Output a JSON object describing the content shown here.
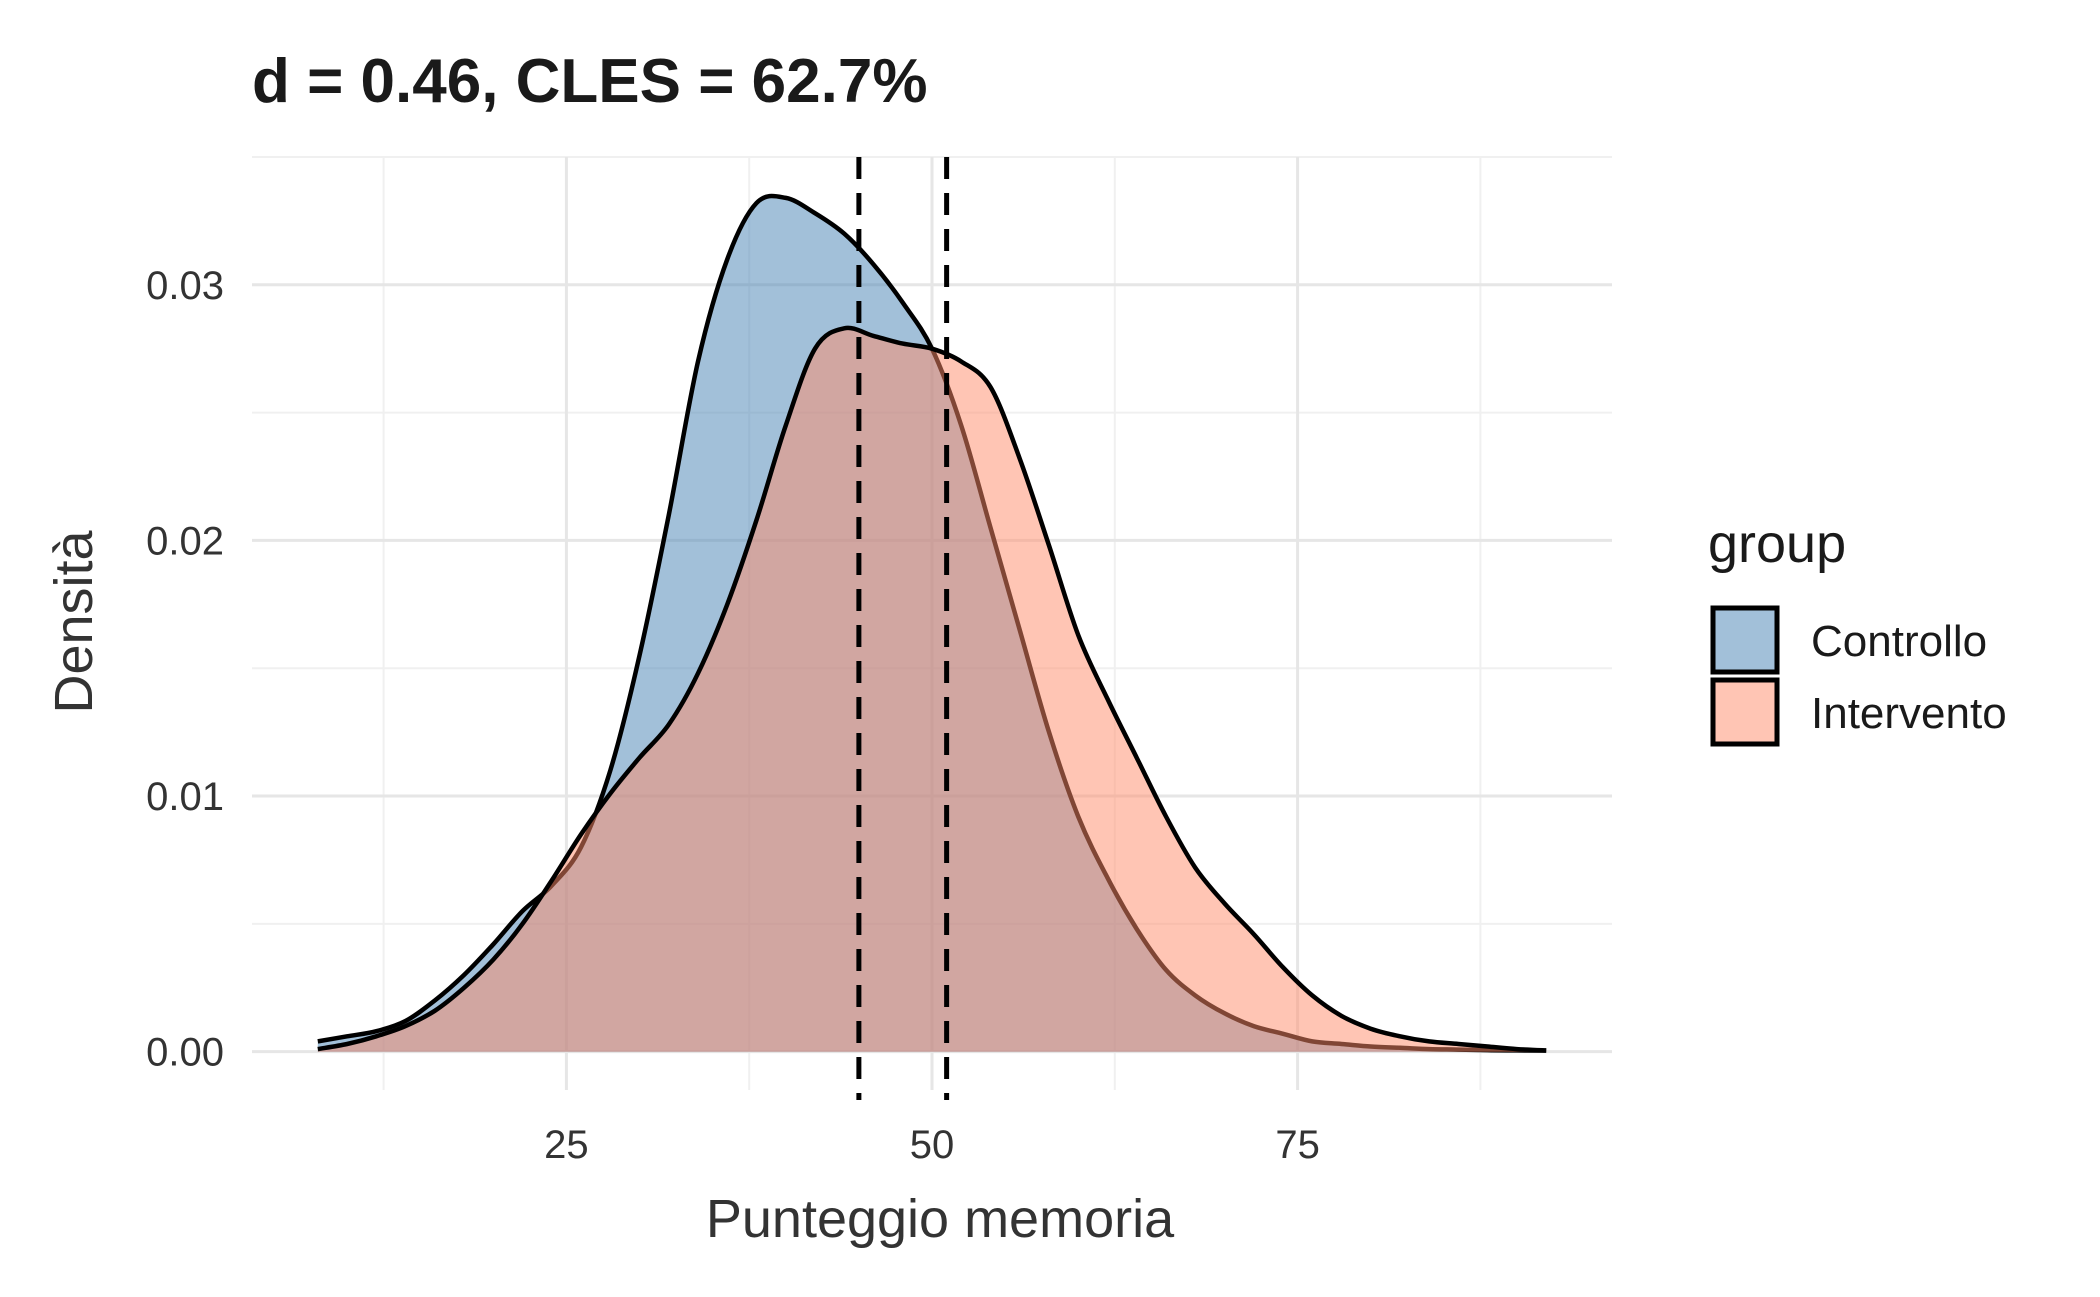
{
  "chart_data": {
    "type": "area",
    "title": "d = 0.46, CLES = 62.7%",
    "xlabel": "Punteggio memoria",
    "ylabel": "Densità",
    "xlim": [
      3.5,
      96.5
    ],
    "ylim": [
      -0.0015,
      0.035
    ],
    "x_ticks": [
      25,
      50,
      75
    ],
    "x_tick_labels": [
      "25",
      "50",
      "75"
    ],
    "y_ticks": [
      0.0,
      0.01,
      0.02,
      0.03
    ],
    "y_tick_labels": [
      "0.00",
      "0.01",
      "0.02",
      "0.03"
    ],
    "grid": true,
    "legend": {
      "title": "group",
      "position": "right"
    },
    "series": [
      {
        "name": "Controllo",
        "color": "#4682B4",
        "mean": 45.0,
        "x": [
          8,
          10,
          12,
          14,
          16,
          18,
          20,
          22,
          24,
          26,
          28,
          30,
          32,
          34,
          36,
          38,
          40,
          42,
          44,
          46,
          48,
          50,
          52,
          54,
          56,
          58,
          60,
          62,
          64,
          66,
          68,
          70,
          72,
          74,
          76,
          78,
          80,
          82,
          84,
          86,
          88,
          90,
          92
        ],
        "y": [
          0.0004,
          0.0006,
          0.0008,
          0.0012,
          0.002,
          0.003,
          0.0042,
          0.0055,
          0.0065,
          0.008,
          0.011,
          0.0155,
          0.021,
          0.027,
          0.031,
          0.0332,
          0.0334,
          0.0328,
          0.032,
          0.0308,
          0.0293,
          0.0275,
          0.0245,
          0.0205,
          0.0165,
          0.0125,
          0.0092,
          0.0068,
          0.0048,
          0.0032,
          0.0022,
          0.0015,
          0.001,
          0.0007,
          0.0004,
          0.0003,
          0.0002,
          0.00015,
          0.0001,
          8e-05,
          6e-05,
          5e-05,
          4e-05
        ]
      },
      {
        "name": "Intervento",
        "color": "#FF8C69",
        "mean": 51.0,
        "x": [
          8,
          10,
          12,
          14,
          16,
          18,
          20,
          22,
          24,
          26,
          28,
          30,
          32,
          34,
          36,
          38,
          40,
          42,
          44,
          46,
          48,
          50,
          52,
          54,
          56,
          58,
          60,
          62,
          64,
          66,
          68,
          70,
          72,
          74,
          76,
          78,
          80,
          82,
          84,
          86,
          88,
          90,
          92
        ],
        "y": [
          0.0001,
          0.0003,
          0.0006,
          0.001,
          0.0016,
          0.0025,
          0.0036,
          0.005,
          0.0067,
          0.0085,
          0.0101,
          0.0115,
          0.0128,
          0.0148,
          0.0175,
          0.0208,
          0.0245,
          0.0275,
          0.0283,
          0.028,
          0.0277,
          0.0275,
          0.027,
          0.026,
          0.0232,
          0.0198,
          0.0163,
          0.0138,
          0.0115,
          0.0092,
          0.0072,
          0.0058,
          0.0046,
          0.0033,
          0.0022,
          0.0014,
          0.0009,
          0.0006,
          0.0004,
          0.0003,
          0.0002,
          0.0001,
          5e-05
        ]
      }
    ],
    "vlines": [
      45.0,
      51.0
    ]
  }
}
